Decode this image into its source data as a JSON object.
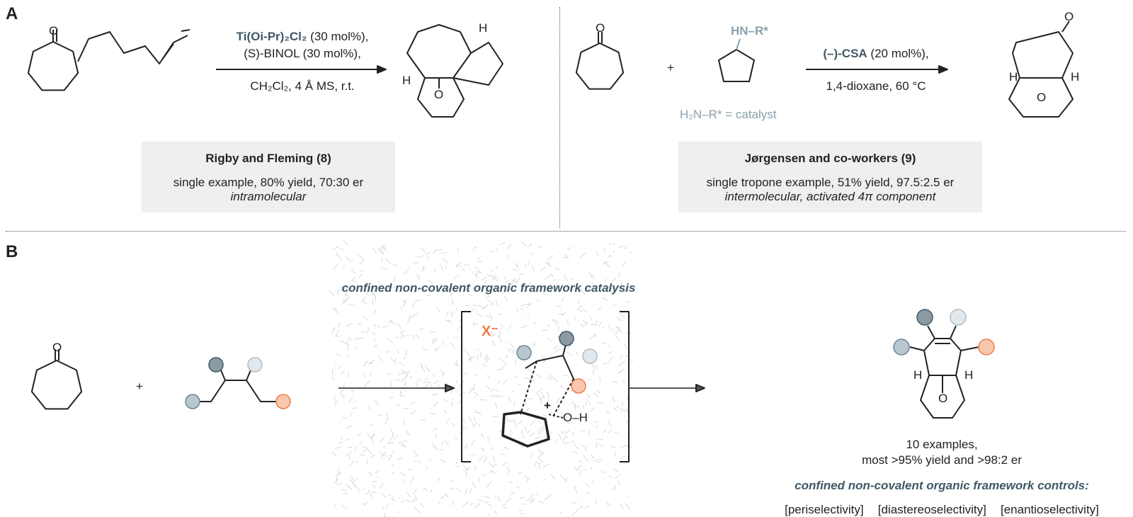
{
  "panels": {
    "a": "A",
    "b": "B"
  },
  "rigby": {
    "reagent_bold": "Ti(Oi-Pr)₂Cl₂",
    "reagent_rest": " (30 mol%),",
    "ligand": "(S)-BINOL (30 mol%),",
    "conditions": "CH₂Cl₂, 4 Å MS, r.t.",
    "title": "Rigby and Fleming (8)",
    "summary": "single example, 80% yield, 70:30 er",
    "note": "intramolecular",
    "h_label": "H",
    "o_label": "O"
  },
  "jorgensen": {
    "amine": "HN–R*",
    "catalyst_note": "H₂N–R* = catalyst",
    "plus": "+",
    "reagent_bold": "(–)-CSA",
    "reagent_rest": " (20 mol%),",
    "conditions": "1,4-dioxane, 60 °C",
    "title": "Jørgensen and co-workers (9)",
    "summary": "single tropone example, 51% yield, 97.5:2.5 er",
    "note": "intermolecular, activated 4π component",
    "h_label": "H",
    "o_label": "O"
  },
  "b": {
    "caption": "confined non-covalent organic framework catalysis",
    "plus": "+",
    "anion": "X⁻",
    "oh": "O–H",
    "plus_charge": "+",
    "result_line1": "10 examples,",
    "result_line2": "most >95% yield and >98:2 er",
    "controls_title": "confined non-covalent organic framework controls:",
    "controls": [
      "[periselectivity]",
      "[diastereoselectivity]",
      "[enantioselectivity]"
    ],
    "h_label": "H",
    "o_label": "O"
  },
  "colors": {
    "accent": "#3f5866",
    "light": "#8aa0ad",
    "orange": "#ee7b4a",
    "dark_sub": "#8c9aa3",
    "pale_sub": "#d5dde3",
    "mid_sub": "#aebdc7"
  }
}
